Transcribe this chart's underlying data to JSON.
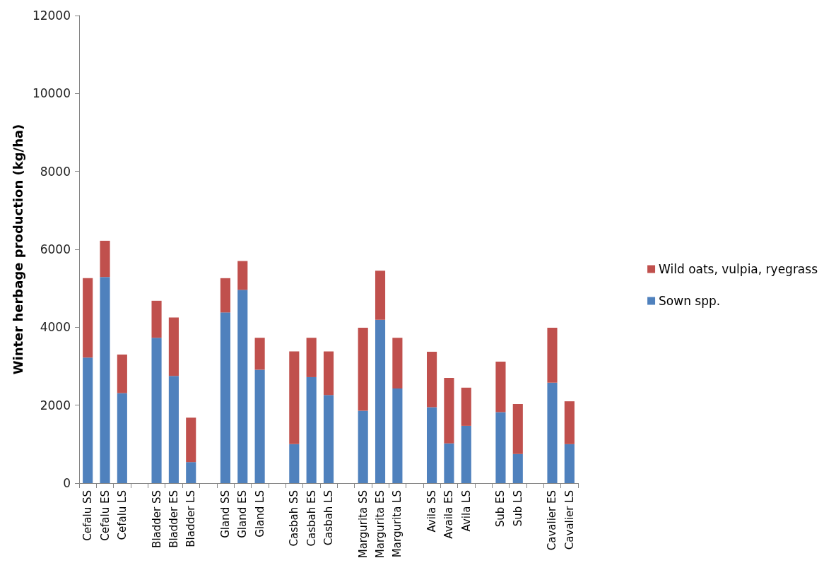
{
  "chart_data": {
    "type": "bar",
    "stacked": true,
    "ylabel": "Winter herbage production (kg/ha)",
    "categories": [
      "Cefalu SS",
      "Cefalu ES",
      "Cefalu LS",
      null,
      "Bladder SS",
      "Bladder ES",
      "Bladder LS",
      null,
      "Gland SS",
      "Gland ES",
      "Gland LS",
      null,
      "Casbah SS",
      "Casbah ES",
      "Casbah LS",
      null,
      "Margurita SS",
      "Margurita ES",
      "Margurita LS",
      null,
      "Avila SS",
      "Availa ES",
      "Avila LS",
      null,
      "Sub ES",
      "Sub LS",
      null,
      "Cavalier ES",
      "Cavalier LS"
    ],
    "series": [
      {
        "name": "Sown spp.",
        "color": "#4f81bd",
        "values": [
          3220,
          5290,
          2310,
          null,
          3730,
          2750,
          540,
          null,
          4380,
          4960,
          2910,
          null,
          1000,
          2720,
          2260,
          null,
          1860,
          4190,
          2430,
          null,
          1950,
          1020,
          1470,
          null,
          1820,
          750,
          null,
          2580,
          1000
        ]
      },
      {
        "name": "Wild oats, vulpia, ryegrass",
        "color": "#c0504d",
        "values": [
          2040,
          930,
          990,
          null,
          950,
          1500,
          1140,
          null,
          880,
          740,
          820,
          null,
          2380,
          1010,
          1120,
          null,
          2130,
          1260,
          1300,
          null,
          1420,
          1680,
          980,
          null,
          1300,
          1280,
          null,
          1410,
          1100
        ]
      }
    ],
    "ylim": [
      0,
      12000
    ],
    "yticks": [
      0,
      2000,
      4000,
      6000,
      8000,
      10000,
      12000
    ],
    "grid": false,
    "legend": "right"
  }
}
